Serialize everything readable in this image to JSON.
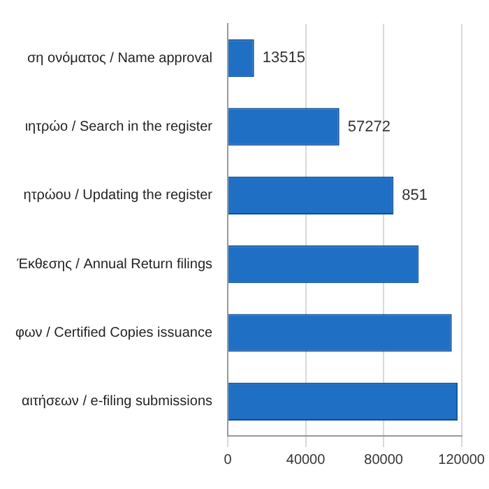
{
  "chart_data": {
    "type": "bar",
    "orientation": "horizontal",
    "categories": [
      "ση ονόματος / Name approval",
      "ιητρώο / Search in the register",
      "ητρώου / Updating the register",
      "Έκθεσης / Annual Return filings",
      "φων / Certified Copies issuance",
      "αιτήσεων / e-filing submissions"
    ],
    "values": [
      13515,
      57272,
      85100,
      98000,
      115000,
      118000
    ],
    "value_labels": [
      "13515",
      "57272",
      null,
      null,
      null,
      null
    ],
    "annotations": [
      {
        "text": "851",
        "x": 85100,
        "y": "ητρώου / Updating the register"
      }
    ],
    "color": "#1f6fc5",
    "xlim": [
      0,
      120000
    ],
    "xticks": [
      0,
      40000,
      80000,
      120000
    ],
    "grid": "x"
  }
}
